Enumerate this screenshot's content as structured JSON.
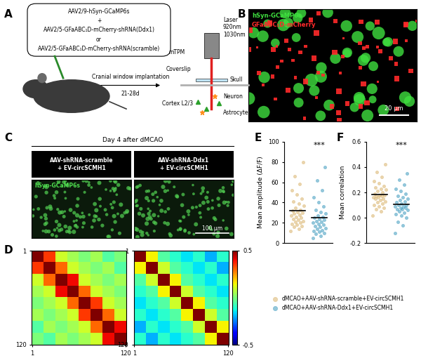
{
  "panels": {
    "A": {
      "letter": "A",
      "injection": [
        "AAV2/9-hSyn-GCaMP6s",
        "+",
        "AAV2/5-GFaABC₁D-mCherry-shRNA(Ddx1)",
        "or",
        "AAV2/5-GFaABC₁D-mCherry-shRNA(scramble)"
      ],
      "step": "Cranial window implantation",
      "interval": "21-28d",
      "laser": "Laser",
      "wavelengths": [
        "920nm",
        "1030nm"
      ],
      "microscope": "mTPM",
      "layers": [
        "Coverslip",
        "Skull"
      ],
      "tissue": "Cortex L2/3",
      "cells": [
        "Neuron",
        "Astrocyte"
      ]
    },
    "B": {
      "letter": "B",
      "channels": [
        {
          "name": "hSyn-GCaMP6s",
          "color": "#3fe03f"
        },
        {
          "name": "GFaABC₁D-mCherry",
          "color": "#ff2a2a"
        }
      ],
      "scale_bar": "20 μm"
    },
    "C": {
      "letter": "C",
      "header": "Day 4 after dMCAO",
      "conditions": [
        "AAV-shRNA-scramble\n+ EV-circSCMH1",
        "AAV-shRNA-Ddx1\n+ EV-circSCMH1"
      ],
      "channel": "hSyn-GCaMP6s",
      "scale_bar": "100 μm"
    }
  },
  "chart_data": [
    {
      "type": "heatmap",
      "panel": "D",
      "xlim": [
        1,
        120
      ],
      "ylim": [
        1,
        120
      ],
      "xticks": [
        1,
        120
      ],
      "yticks": [
        1,
        120
      ],
      "matrices": [
        [
          [
            1.0,
            0.35,
            0.1,
            0.05,
            0.0,
            0.05,
            -0.05,
            0.0
          ],
          [
            0.35,
            1.0,
            0.3,
            0.1,
            0.05,
            0.0,
            0.05,
            -0.05
          ],
          [
            0.1,
            0.3,
            1.0,
            0.4,
            0.1,
            0.05,
            0.0,
            0.05
          ],
          [
            0.05,
            0.1,
            0.4,
            1.0,
            0.3,
            0.1,
            0.05,
            0.0
          ],
          [
            0.0,
            0.05,
            0.1,
            0.3,
            1.0,
            0.35,
            0.1,
            0.05
          ],
          [
            0.05,
            0.0,
            0.05,
            0.1,
            0.35,
            1.0,
            0.3,
            0.1
          ],
          [
            -0.05,
            0.05,
            0.0,
            0.05,
            0.1,
            0.3,
            1.0,
            0.4
          ],
          [
            0.0,
            -0.05,
            0.05,
            0.0,
            0.05,
            0.1,
            0.4,
            1.0
          ]
        ],
        [
          [
            1.0,
            0.15,
            -0.05,
            -0.1,
            -0.15,
            -0.1,
            -0.2,
            -0.1
          ],
          [
            0.15,
            1.0,
            0.1,
            -0.05,
            -0.1,
            -0.15,
            -0.1,
            -0.2
          ],
          [
            -0.05,
            0.1,
            1.0,
            0.15,
            -0.05,
            -0.1,
            -0.15,
            -0.1
          ],
          [
            -0.1,
            -0.05,
            0.15,
            1.0,
            0.1,
            -0.05,
            -0.1,
            -0.15
          ],
          [
            -0.15,
            -0.1,
            -0.05,
            0.1,
            1.0,
            0.15,
            -0.05,
            -0.1
          ],
          [
            -0.1,
            -0.15,
            -0.1,
            -0.05,
            0.15,
            1.0,
            0.1,
            -0.05
          ],
          [
            -0.2,
            -0.1,
            -0.15,
            -0.1,
            -0.05,
            0.1,
            1.0,
            0.15
          ],
          [
            -0.1,
            -0.2,
            -0.1,
            -0.15,
            -0.1,
            -0.05,
            0.15,
            1.0
          ]
        ]
      ],
      "colorbar_range": [
        -0.5,
        0.5
      ],
      "colorbar_ticks": [
        -0.5,
        0.5
      ]
    },
    {
      "type": "scatter",
      "panel": "E",
      "ylabel": "Mean amplitude (ΔF/F)",
      "ylim": [
        0,
        100
      ],
      "yticks": [
        0,
        20,
        40,
        60,
        80,
        100
      ],
      "tick_labels": "y",
      "annotation": "***",
      "legend": "lower center",
      "series": [
        {
          "name": "dMCAO+AAV-shRNA-scramble+EV-circSCMH1",
          "color": "#d9b36c",
          "values": [
            12,
            14,
            16,
            17,
            18,
            19,
            20,
            21,
            22,
            23,
            24,
            25,
            26,
            27,
            28,
            29,
            30,
            31,
            32,
            33,
            35,
            37,
            39,
            41,
            44,
            48,
            52,
            58,
            66,
            80
          ]
        },
        {
          "name": "dMCAO+AAV-shRNA-Ddx1+EV-circSCMH1",
          "color": "#3f9bbf",
          "values": [
            5,
            7,
            9,
            10,
            11,
            12,
            13,
            14,
            15,
            16,
            17,
            18,
            19,
            20,
            21,
            22,
            23,
            24,
            25,
            26,
            27,
            29,
            31,
            33,
            36,
            40,
            45,
            52,
            62,
            75
          ]
        }
      ]
    },
    {
      "type": "scatter",
      "panel": "F",
      "ylabel": "Mean correlation",
      "ylim": [
        -0.2,
        0.6
      ],
      "yticks": [
        -0.2,
        0.0,
        0.2,
        0.4,
        0.6
      ],
      "tick_labels": "y",
      "annotation": "***",
      "series": [
        {
          "name": "dMCAO+AAV-shRNA-scramble+EV-circSCMH1",
          "color": "#d9b36c",
          "values": [
            0.02,
            0.05,
            0.07,
            0.08,
            0.09,
            0.1,
            0.11,
            0.12,
            0.13,
            0.14,
            0.15,
            0.15,
            0.16,
            0.16,
            0.17,
            0.17,
            0.18,
            0.18,
            0.19,
            0.2,
            0.21,
            0.22,
            0.23,
            0.24,
            0.25,
            0.27,
            0.29,
            0.32,
            0.36,
            0.42
          ]
        },
        {
          "name": "dMCAO+AAV-shRNA-Ddx1+EV-circSCMH1",
          "color": "#3f9bbf",
          "values": [
            -0.12,
            -0.06,
            -0.03,
            0.0,
            0.02,
            0.03,
            0.04,
            0.05,
            0.06,
            0.07,
            0.07,
            0.08,
            0.08,
            0.09,
            0.09,
            0.1,
            0.1,
            0.11,
            0.12,
            0.13,
            0.14,
            0.15,
            0.16,
            0.17,
            0.19,
            0.21,
            0.23,
            0.26,
            0.3,
            0.35
          ]
        }
      ]
    }
  ]
}
